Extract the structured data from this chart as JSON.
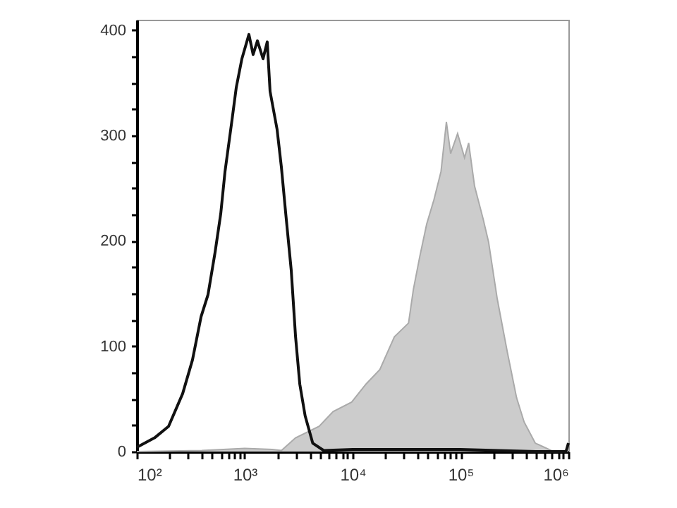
{
  "chart_data": {
    "type": "area",
    "log": "x",
    "grid": false,
    "xlim": [
      100,
      1000000
    ],
    "xticks": [
      {
        "value": 100,
        "label": "10²"
      },
      {
        "value": 200,
        "label": null
      },
      {
        "value": 300,
        "label": null
      },
      {
        "value": 400,
        "label": null
      },
      {
        "value": 500,
        "label": null
      },
      {
        "value": 600,
        "label": null
      },
      {
        "value": 700,
        "label": null
      },
      {
        "value": 800,
        "label": null
      },
      {
        "value": 900,
        "label": null
      },
      {
        "value": 1000,
        "label": "10³"
      },
      {
        "value": 2000,
        "label": null
      },
      {
        "value": 3000,
        "label": null
      },
      {
        "value": 4000,
        "label": null
      },
      {
        "value": 5000,
        "label": null
      },
      {
        "value": 6000,
        "label": null
      },
      {
        "value": 7000,
        "label": null
      },
      {
        "value": 8000,
        "label": null
      },
      {
        "value": 9000,
        "label": null
      },
      {
        "value": 10000,
        "label": "10⁴"
      },
      {
        "value": 20000,
        "label": null
      },
      {
        "value": 30000,
        "label": null
      },
      {
        "value": 40000,
        "label": null
      },
      {
        "value": 50000,
        "label": null
      },
      {
        "value": 60000,
        "label": null
      },
      {
        "value": 70000,
        "label": null
      },
      {
        "value": 80000,
        "label": null
      },
      {
        "value": 90000,
        "label": null
      },
      {
        "value": 100000,
        "label": "10⁵"
      },
      {
        "value": 200000,
        "label": null
      },
      {
        "value": 300000,
        "label": null
      },
      {
        "value": 400000,
        "label": null
      },
      {
        "value": 500000,
        "label": null
      },
      {
        "value": 600000,
        "label": null
      },
      {
        "value": 700000,
        "label": null
      },
      {
        "value": 800000,
        "label": null
      },
      {
        "value": 900000,
        "label": null
      },
      {
        "value": 1000000,
        "label": "10⁶"
      }
    ],
    "ylim": [
      0,
      410
    ],
    "yticks": [
      0,
      {
        "value": 25,
        "label": null
      },
      {
        "value": 50,
        "label": null
      },
      {
        "value": 75,
        "label": null
      },
      100,
      {
        "value": 125,
        "label": null
      },
      {
        "value": 150,
        "label": null
      },
      {
        "value": 175,
        "label": null
      },
      200,
      {
        "value": 225,
        "label": null
      },
      {
        "value": 250,
        "label": null
      },
      {
        "value": 275,
        "label": null
      },
      300,
      {
        "value": 325,
        "label": null
      },
      {
        "value": 350,
        "label": null
      },
      {
        "value": 375,
        "label": null
      },
      400
    ],
    "series": [
      {
        "type": "area",
        "color": "#cccccc",
        "x": [
          100,
          400,
          1000,
          1800,
          2190,
          2960,
          4900,
          6600,
          9800,
          13300,
          17900,
          24400,
          33000,
          36600,
          41900,
          48600,
          56700,
          66000,
          74000,
          81000,
          94000,
          109000,
          119000,
          135000,
          162000,
          182000,
          219000,
          271000,
          331000,
          389000,
          493000,
          727000,
          1000000
        ],
        "values": [
          0,
          1,
          3,
          2,
          1,
          13,
          24,
          38,
          47,
          64,
          78,
          109,
          122,
          154,
          185,
          216,
          239,
          266,
          313,
          283,
          302,
          279,
          293,
          252,
          221,
          199,
          145,
          95,
          51,
          28,
          8,
          0,
          0
        ]
      },
      {
        "type": "line",
        "color": "#111111",
        "x": [
          100,
          146,
          197,
          266,
          328,
          394,
          457,
          531,
          600,
          657,
          763,
          836,
          942,
          1094,
          1197,
          1312,
          1479,
          1618,
          1718,
          1995,
          2188,
          2400,
          2700,
          2960,
          3240,
          3630,
          4270,
          5400,
          10000,
          100000,
          500000,
          950000,
          1000000
        ],
        "values": [
          4,
          13,
          24,
          55,
          87,
          128,
          149,
          189,
          226,
          266,
          315,
          346,
          373,
          396,
          377,
          390,
          373,
          389,
          342,
          306,
          270,
          226,
          172,
          109,
          64,
          34,
          8,
          1,
          2,
          2,
          0,
          0,
          8
        ]
      }
    ]
  }
}
